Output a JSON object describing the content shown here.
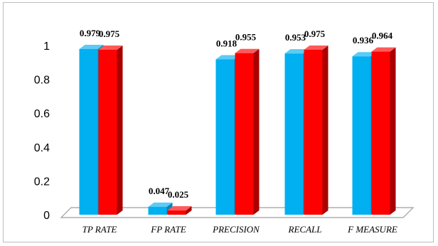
{
  "chart_data": {
    "type": "bar",
    "categories": [
      "TP RATE",
      "FP RATE",
      "PRECISION",
      "RECALL",
      "F MEASURE"
    ],
    "series": [
      {
        "values": [
          0.979,
          0.047,
          0.918,
          0.953,
          0.936
        ],
        "color": "#00B0F0",
        "side_color": "#0086BA",
        "top_color": "#5CCBF5"
      },
      {
        "values": [
          0.975,
          0.025,
          0.955,
          0.975,
          0.964
        ],
        "color": "#FF0000",
        "side_color": "#A80000",
        "top_color": "#FF5A5A"
      }
    ],
    "data_labels": [
      [
        "0.979",
        "0.047",
        "0.918",
        "0.953",
        "0.936"
      ],
      [
        "0.975",
        "0.025",
        "0.955",
        "0.975",
        "0.964"
      ]
    ],
    "yticks": [
      "0",
      "0.2",
      "0.4",
      "0.6",
      "0.8",
      "1"
    ],
    "ylim": [
      0,
      1
    ],
    "grid": false,
    "legend": "none",
    "floor_color": "#9E9E9E"
  }
}
